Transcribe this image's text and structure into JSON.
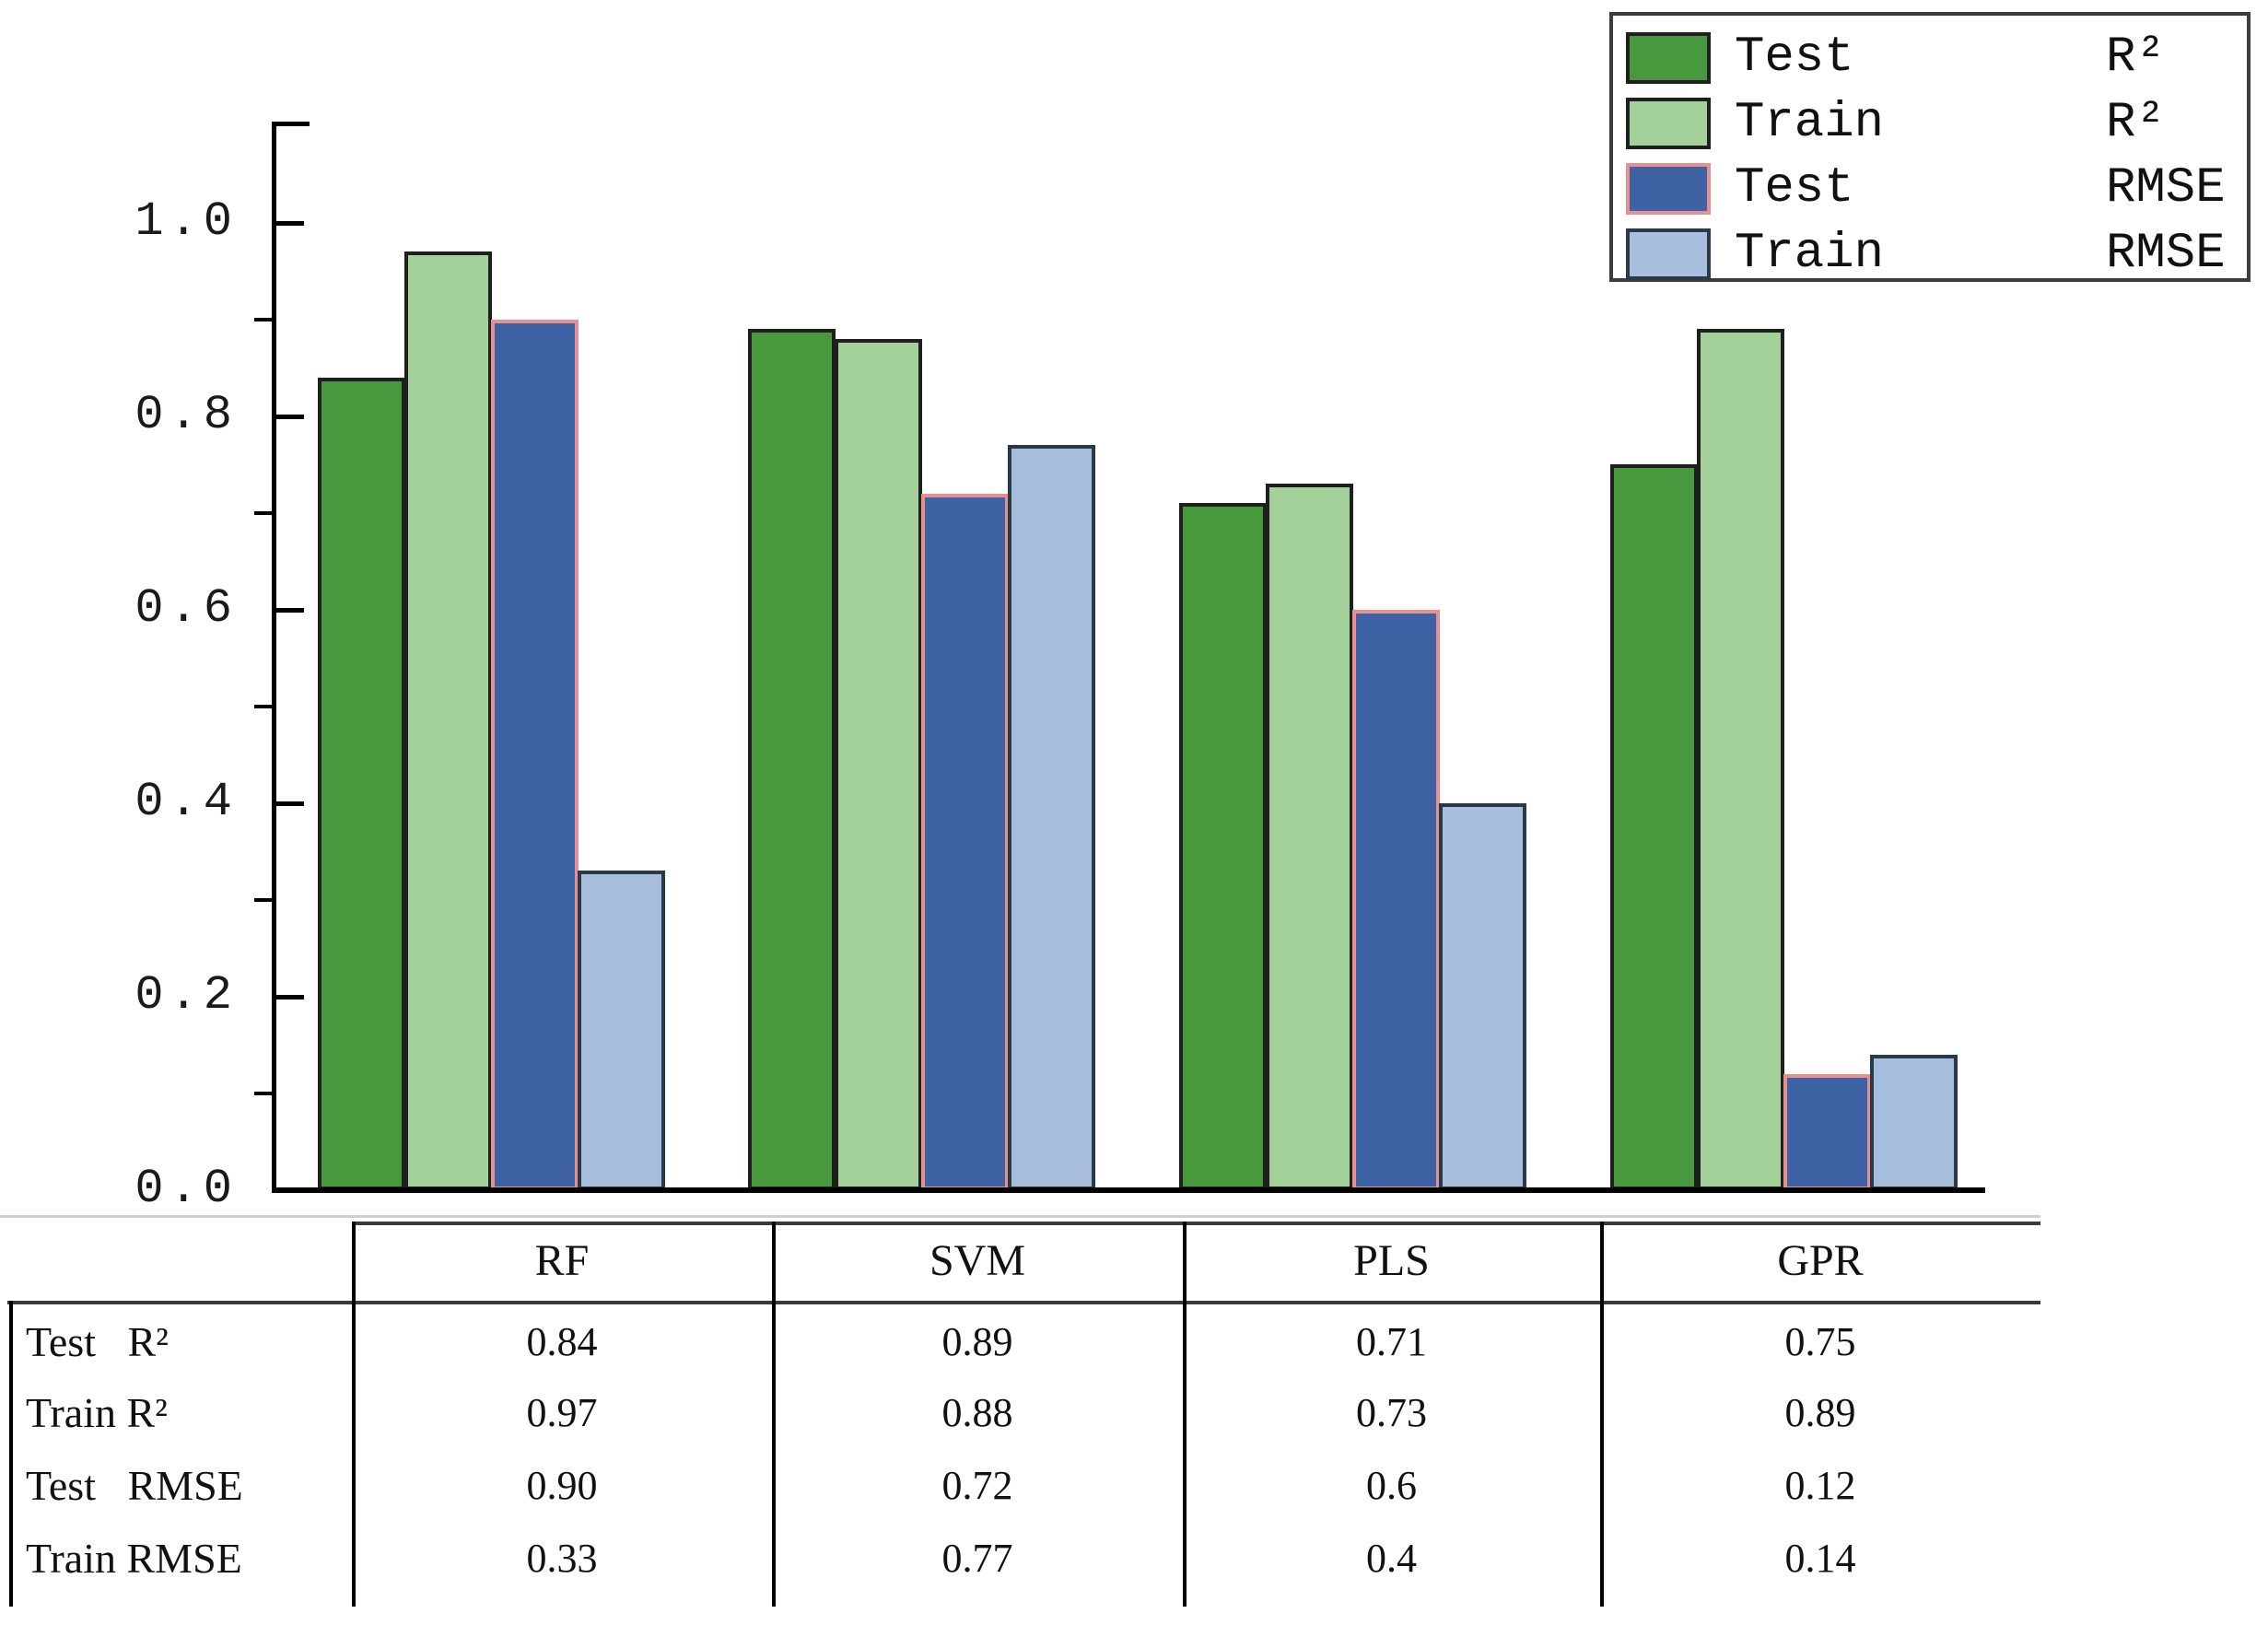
{
  "chart_data": {
    "type": "bar",
    "title": "",
    "xlabel": "",
    "ylabel": "",
    "categories": [
      "RF",
      "SVM",
      "PLS",
      "GPR"
    ],
    "series": [
      {
        "name": "Test R²",
        "values": [
          0.84,
          0.89,
          0.71,
          0.75
        ]
      },
      {
        "name": "Train R²",
        "values": [
          0.97,
          0.88,
          0.73,
          0.89
        ]
      },
      {
        "name": "Test RMSE",
        "values": [
          0.9,
          0.72,
          0.6,
          0.12
        ]
      },
      {
        "name": "Train RMSE",
        "values": [
          0.33,
          0.77,
          0.4,
          0.14
        ]
      }
    ],
    "ylim": [
      0,
      1.1
    ],
    "yticks": [
      0.0,
      0.2,
      0.4,
      0.6,
      0.8,
      1.0
    ],
    "ytick_labels": [
      "0.0",
      "0.2",
      "0.4",
      "0.6",
      "0.8",
      "1.0"
    ],
    "minor_yticks": [
      0.1,
      0.3,
      0.5,
      0.7,
      0.9
    ],
    "grid": false,
    "legend_position": "upper right"
  },
  "colors": {
    "test_r2_fill": "#48993d",
    "test_r2_edge": "#1f1f1f",
    "train_r2_fill": "#a4d09a",
    "train_r2_edge": "#1f1f1f",
    "test_rmse_fill": "#3e63a4",
    "test_rmse_edge": "#e8908f",
    "train_rmse_fill": "#a8bedd",
    "train_rmse_edge": "#2b3947",
    "axis": "#000000",
    "table_line": "#3a3a3a"
  },
  "legend": {
    "items": [
      {
        "name": "Test",
        "metric": "R²"
      },
      {
        "name": "Train",
        "metric": "R²"
      },
      {
        "name": "Test",
        "metric": "RMSE"
      },
      {
        "name": "Train",
        "metric": "RMSE"
      }
    ]
  },
  "table": {
    "col_headers": [
      "RF",
      "SVM",
      "PLS",
      "GPR"
    ],
    "row_labels": [
      "Test   R²",
      "Train R²",
      "Test   RMSE",
      "Train RMSE"
    ],
    "rows": [
      [
        "0.84",
        "0.89",
        "0.71",
        "0.75"
      ],
      [
        "0.97",
        "0.88",
        "0.73",
        "0.89"
      ],
      [
        "0.90",
        "0.72",
        "0.6",
        "0.12"
      ],
      [
        "0.33",
        "0.77",
        "0.4",
        "0.14"
      ]
    ]
  }
}
